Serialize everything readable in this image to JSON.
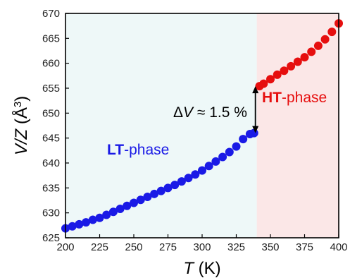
{
  "chart_data": {
    "type": "scatter",
    "xlabel": "T (K)",
    "ylabel": "V/Z (Å³)",
    "xlabel_parts": {
      "var": "T",
      "unit": " (K)"
    },
    "ylabel_parts": {
      "var": "V/Z",
      "unit_open": " (Å",
      "sup": "3",
      "unit_close": ")"
    },
    "xlim": [
      200,
      400
    ],
    "ylim": [
      625,
      670
    ],
    "xticks": [
      200,
      225,
      250,
      275,
      300,
      325,
      350,
      375,
      400
    ],
    "yticks": [
      625,
      630,
      635,
      640,
      645,
      650,
      655,
      660,
      665,
      670
    ],
    "grid": false,
    "regions": [
      {
        "name": "LT",
        "x_range": [
          200,
          340
        ],
        "color": "#eef8f8"
      },
      {
        "name": "HT",
        "x_range": [
          340,
          400
        ],
        "color": "#fbe7e7"
      }
    ],
    "series": [
      {
        "name": "LT-phase",
        "color": "#1a1ae6",
        "points": [
          [
            200,
            626.9
          ],
          [
            205,
            627.3
          ],
          [
            210,
            627.7
          ],
          [
            215,
            628.1
          ],
          [
            220,
            628.6
          ],
          [
            225,
            629.0
          ],
          [
            230,
            629.6
          ],
          [
            235,
            630.2
          ],
          [
            240,
            630.8
          ],
          [
            245,
            631.4
          ],
          [
            250,
            632.0
          ],
          [
            255,
            632.6
          ],
          [
            260,
            633.2
          ],
          [
            265,
            633.8
          ],
          [
            270,
            634.4
          ],
          [
            275,
            635.0
          ],
          [
            280,
            635.6
          ],
          [
            285,
            636.3
          ],
          [
            290,
            637.0
          ],
          [
            295,
            637.7
          ],
          [
            300,
            638.5
          ],
          [
            305,
            639.4
          ],
          [
            310,
            640.3
          ],
          [
            315,
            641.2
          ],
          [
            320,
            642.2
          ],
          [
            325,
            643.3
          ],
          [
            330,
            644.8
          ],
          [
            335,
            645.8
          ],
          [
            338,
            646.0
          ]
        ]
      },
      {
        "name": "HT-phase",
        "color": "#e60f0f",
        "points": [
          [
            342,
            655.4
          ],
          [
            345,
            655.9
          ],
          [
            350,
            656.8
          ],
          [
            355,
            657.7
          ],
          [
            360,
            658.5
          ],
          [
            365,
            659.4
          ],
          [
            370,
            660.3
          ],
          [
            375,
            661.2
          ],
          [
            380,
            662.3
          ],
          [
            385,
            663.5
          ],
          [
            390,
            664.8
          ],
          [
            395,
            666.3
          ],
          [
            400,
            668.0
          ]
        ]
      }
    ],
    "annotations": [
      {
        "name": "LT-label",
        "bold": "LT",
        "rest": "-phase",
        "color": "#1a1ae6"
      },
      {
        "name": "HT-label",
        "bold": "HT",
        "rest": "-phase",
        "color": "#e60f0f"
      },
      {
        "name": "delta-v-label",
        "sym": "Δ",
        "var": "V",
        "rest": " ≈ 1.5 %",
        "color": "#000000"
      }
    ],
    "jump_arrow": {
      "x": 339,
      "y_from": 646.0,
      "y_to": 655.4
    }
  }
}
